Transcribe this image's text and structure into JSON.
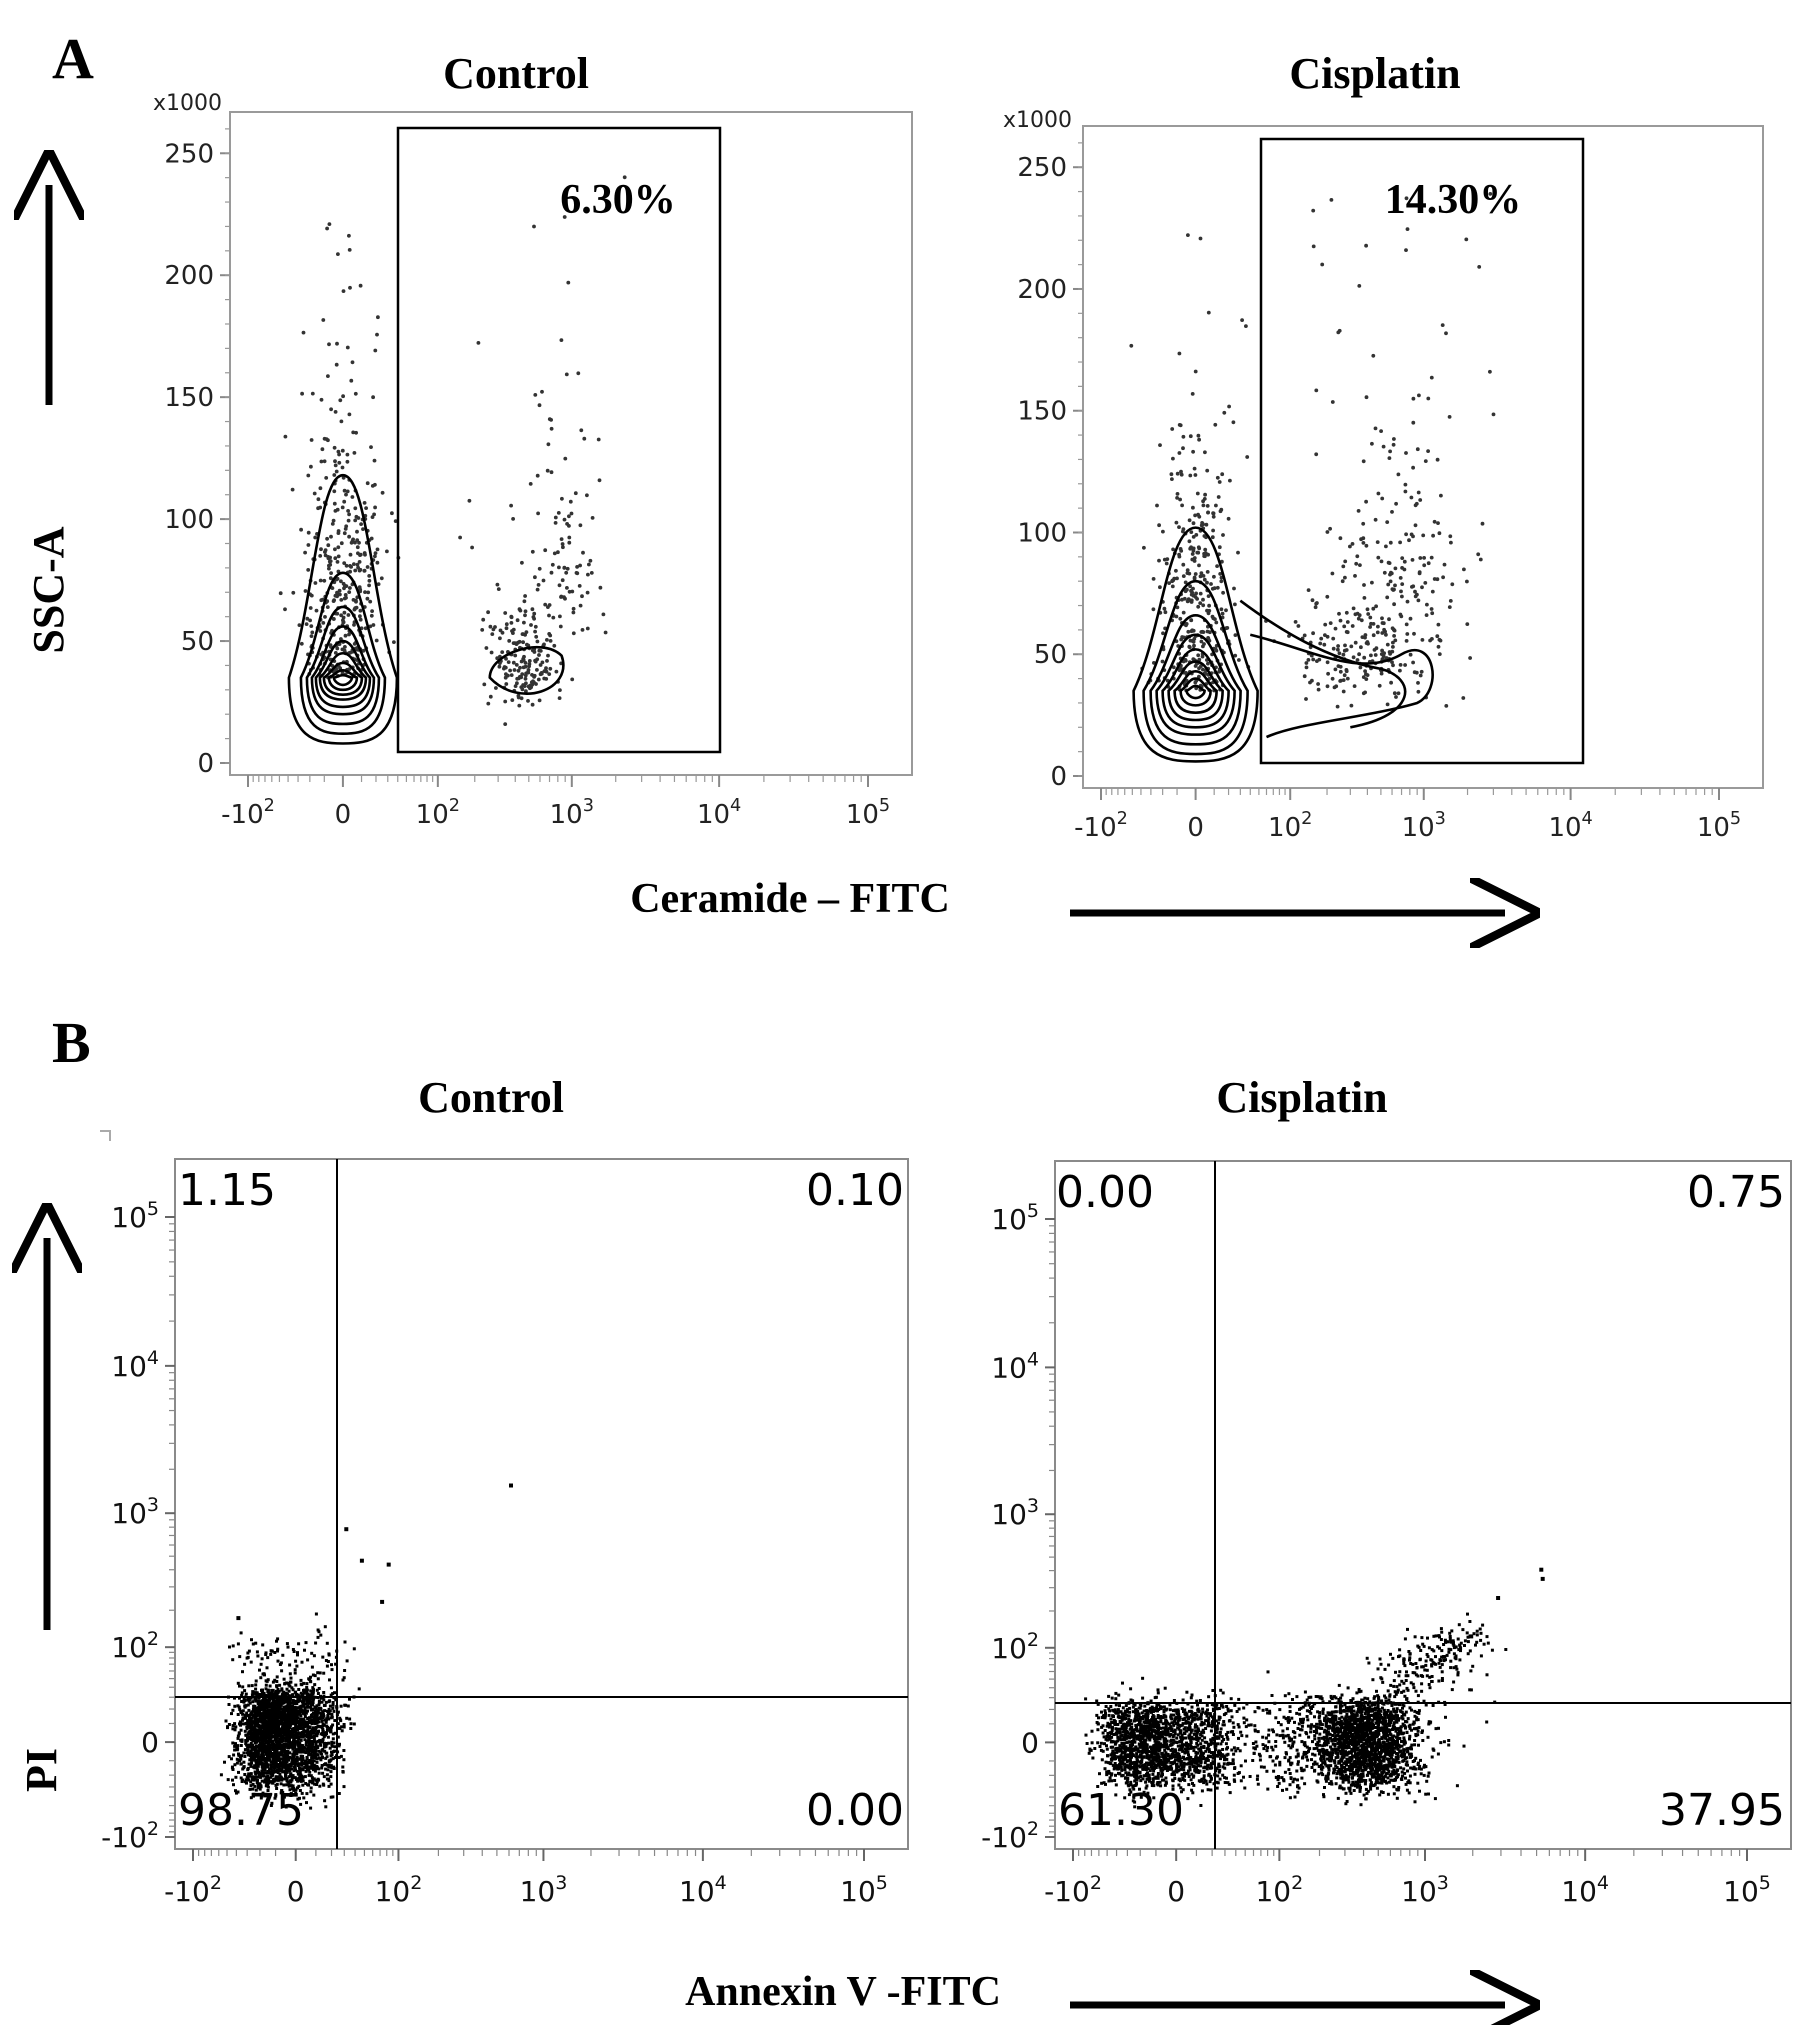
{
  "figure": {
    "panel_a_letter": "A",
    "panel_b_letter": "B"
  },
  "chart_data": [
    {
      "type": "scatter",
      "panel": "A",
      "title": "Control",
      "xlabel": "Ceramide – FITC",
      "ylabel": "SSC-A",
      "y_multiplier_label": "x1000",
      "x_ticks": [
        "-10",
        "0",
        "10",
        "10",
        "10",
        "10"
      ],
      "x_tick_exponents": [
        "2",
        "",
        "2",
        "3",
        "4",
        "5"
      ],
      "y_ticks": [
        "0",
        "50",
        "100",
        "150",
        "200",
        "250"
      ],
      "ylim": [
        0,
        262
      ],
      "gate_label": "6.30%",
      "gate_percent": 6.3
    },
    {
      "type": "scatter",
      "panel": "A",
      "title": "Cisplatin",
      "xlabel": "Ceramide – FITC",
      "ylabel": "SSC-A",
      "y_multiplier_label": "x1000",
      "x_ticks": [
        "-10",
        "0",
        "10",
        "10",
        "10",
        "10"
      ],
      "x_tick_exponents": [
        "2",
        "",
        "2",
        "3",
        "4",
        "5"
      ],
      "y_ticks": [
        "0",
        "50",
        "100",
        "150",
        "200",
        "250"
      ],
      "ylim": [
        0,
        262
      ],
      "gate_label": "14.30%",
      "gate_percent": 14.3
    },
    {
      "type": "scatter",
      "panel": "B",
      "title": "Control",
      "xlabel": "Annexin V -FITC",
      "ylabel": "PI",
      "x_ticks": [
        "-10",
        "0",
        "10",
        "10",
        "10",
        "10"
      ],
      "x_tick_exponents": [
        "2",
        "",
        "2",
        "3",
        "4",
        "5"
      ],
      "y_ticks": [
        "-10",
        "0",
        "10",
        "10",
        "10",
        "10"
      ],
      "y_tick_exponents": [
        "2",
        "",
        "2",
        "3",
        "4",
        "5"
      ],
      "quadrants": {
        "upper_left": "1.15",
        "upper_right": "0.10",
        "lower_left": "98.75",
        "lower_right": "0.00"
      }
    },
    {
      "type": "scatter",
      "panel": "B",
      "title": "Cisplatin",
      "xlabel": "Annexin V -FITC",
      "ylabel": "PI",
      "x_ticks": [
        "-10",
        "0",
        "10",
        "10",
        "10",
        "10"
      ],
      "x_tick_exponents": [
        "2",
        "",
        "2",
        "3",
        "4",
        "5"
      ],
      "y_ticks": [
        "-10",
        "0",
        "10",
        "10",
        "10",
        "10"
      ],
      "y_tick_exponents": [
        "2",
        "",
        "2",
        "3",
        "4",
        "5"
      ],
      "quadrants": {
        "upper_left": "0.00",
        "upper_right": "0.75",
        "lower_left": "61.30",
        "lower_right": "37.95"
      }
    }
  ]
}
